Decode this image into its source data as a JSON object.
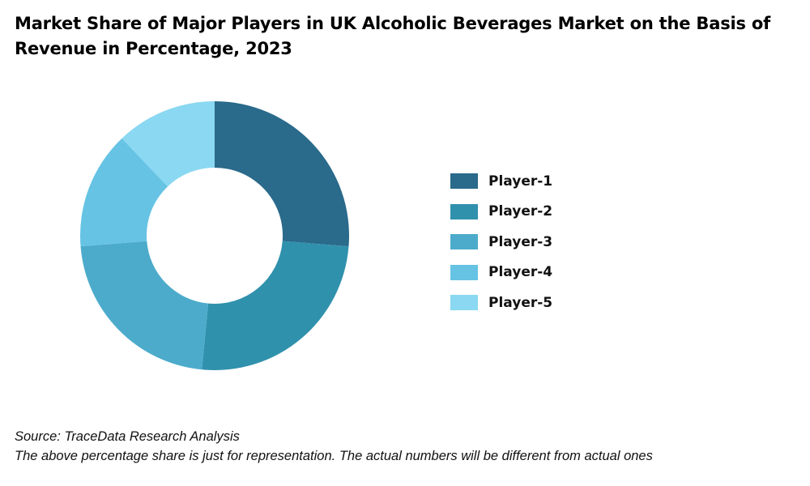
{
  "chart_data": {
    "type": "pie",
    "title": "Market Share of Major Players in UK Alcoholic Beverages Market on the Basis of Revenue in Percentage, 2023",
    "categories": [
      "Player-1",
      "Player-2",
      "Player-3",
      "Player-4",
      "Player-5"
    ],
    "values": [
      26,
      25,
      22,
      14,
      12
    ],
    "colors": [
      "#2A6A8B",
      "#3091AD",
      "#4CABCB",
      "#66C3E4",
      "#8AD8F1"
    ],
    "donut": true,
    "legend_position": "right"
  },
  "footer": {
    "source": "Source: TraceData Research Analysis",
    "note": "The above percentage share is just for representation. The actual numbers will be different from actual ones"
  }
}
